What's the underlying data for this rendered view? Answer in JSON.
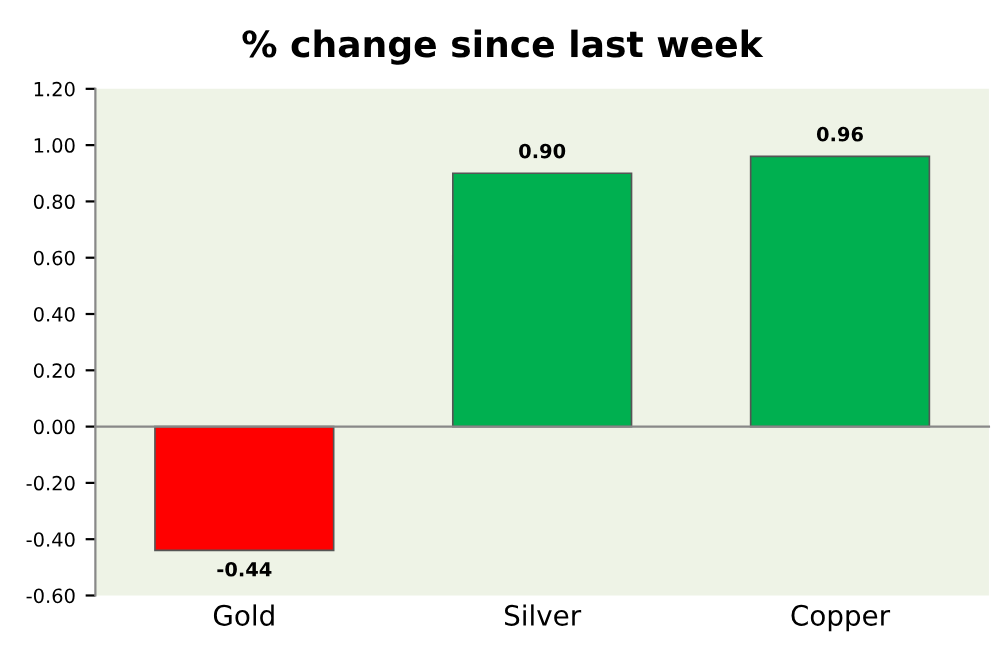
{
  "chart_data": {
    "type": "bar",
    "title": "% change since last week",
    "categories": [
      "Gold",
      "Silver",
      "Copper"
    ],
    "values": [
      -0.44,
      0.9,
      0.96
    ],
    "colors": [
      "#ff0000",
      "#00b050",
      "#00b050"
    ],
    "value_labels": [
      "-0.44",
      "0.90",
      "0.96"
    ],
    "ylim": [
      -0.6,
      1.2
    ],
    "yticks": [
      {
        "value": -0.6,
        "label": "-0.60"
      },
      {
        "value": -0.4,
        "label": "-0.40"
      },
      {
        "value": -0.2,
        "label": "-0.20"
      },
      {
        "value": 0,
        "label": "0.00"
      },
      {
        "value": 0.2,
        "label": "0.20"
      },
      {
        "value": 0.4,
        "label": "0.40"
      },
      {
        "value": 0.6,
        "label": "0.60"
      },
      {
        "value": 0.8,
        "label": "0.80"
      },
      {
        "value": 1.0,
        "label": "1.00"
      },
      {
        "value": 1.2,
        "label": "1.20"
      }
    ],
    "legend": false
  }
}
